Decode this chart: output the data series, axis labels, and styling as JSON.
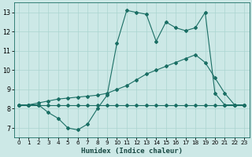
{
  "xlabel": "Humidex (Indice chaleur)",
  "bg_color": "#cce8e6",
  "grid_color": "#aad4d0",
  "line_color": "#1a6e64",
  "xlim": [
    -0.5,
    23.5
  ],
  "ylim": [
    6.5,
    13.5
  ],
  "xticks": [
    0,
    1,
    2,
    3,
    4,
    5,
    6,
    7,
    8,
    9,
    10,
    11,
    12,
    13,
    14,
    15,
    16,
    17,
    18,
    19,
    20,
    21,
    22,
    23
  ],
  "yticks": [
    7,
    8,
    9,
    10,
    11,
    12,
    13
  ],
  "line_jagged_x": [
    0,
    1,
    2,
    3,
    4,
    5,
    6,
    7,
    8,
    9,
    10,
    11,
    12,
    13,
    14,
    15,
    16,
    17,
    18,
    19,
    20,
    21,
    22,
    23
  ],
  "line_jagged_y": [
    8.2,
    8.2,
    8.2,
    7.8,
    7.5,
    7.0,
    6.9,
    7.2,
    8.0,
    8.7,
    11.4,
    13.1,
    13.0,
    12.9,
    11.5,
    12.5,
    12.2,
    12.05,
    12.2,
    13.0,
    8.8,
    8.2,
    8.2,
    8.2
  ],
  "line_smooth_x": [
    0,
    1,
    2,
    3,
    4,
    5,
    6,
    7,
    8,
    9,
    10,
    11,
    12,
    13,
    14,
    15,
    16,
    17,
    18,
    19,
    20,
    21,
    22,
    23
  ],
  "line_smooth_y": [
    8.2,
    8.2,
    8.3,
    8.4,
    8.5,
    8.55,
    8.6,
    8.65,
    8.7,
    8.8,
    9.0,
    9.2,
    9.5,
    9.8,
    10.0,
    10.2,
    10.4,
    10.6,
    10.8,
    10.4,
    9.6,
    8.8,
    8.2,
    8.2
  ],
  "line_flat_x": [
    0,
    1,
    2,
    3,
    4,
    5,
    6,
    7,
    8,
    9,
    10,
    11,
    12,
    13,
    14,
    15,
    16,
    17,
    18,
    19,
    20,
    21,
    22,
    23
  ],
  "line_flat_y": [
    8.2,
    8.2,
    8.2,
    8.2,
    8.2,
    8.2,
    8.2,
    8.2,
    8.2,
    8.2,
    8.2,
    8.2,
    8.2,
    8.2,
    8.2,
    8.2,
    8.2,
    8.2,
    8.2,
    8.2,
    8.2,
    8.2,
    8.2,
    8.2
  ]
}
